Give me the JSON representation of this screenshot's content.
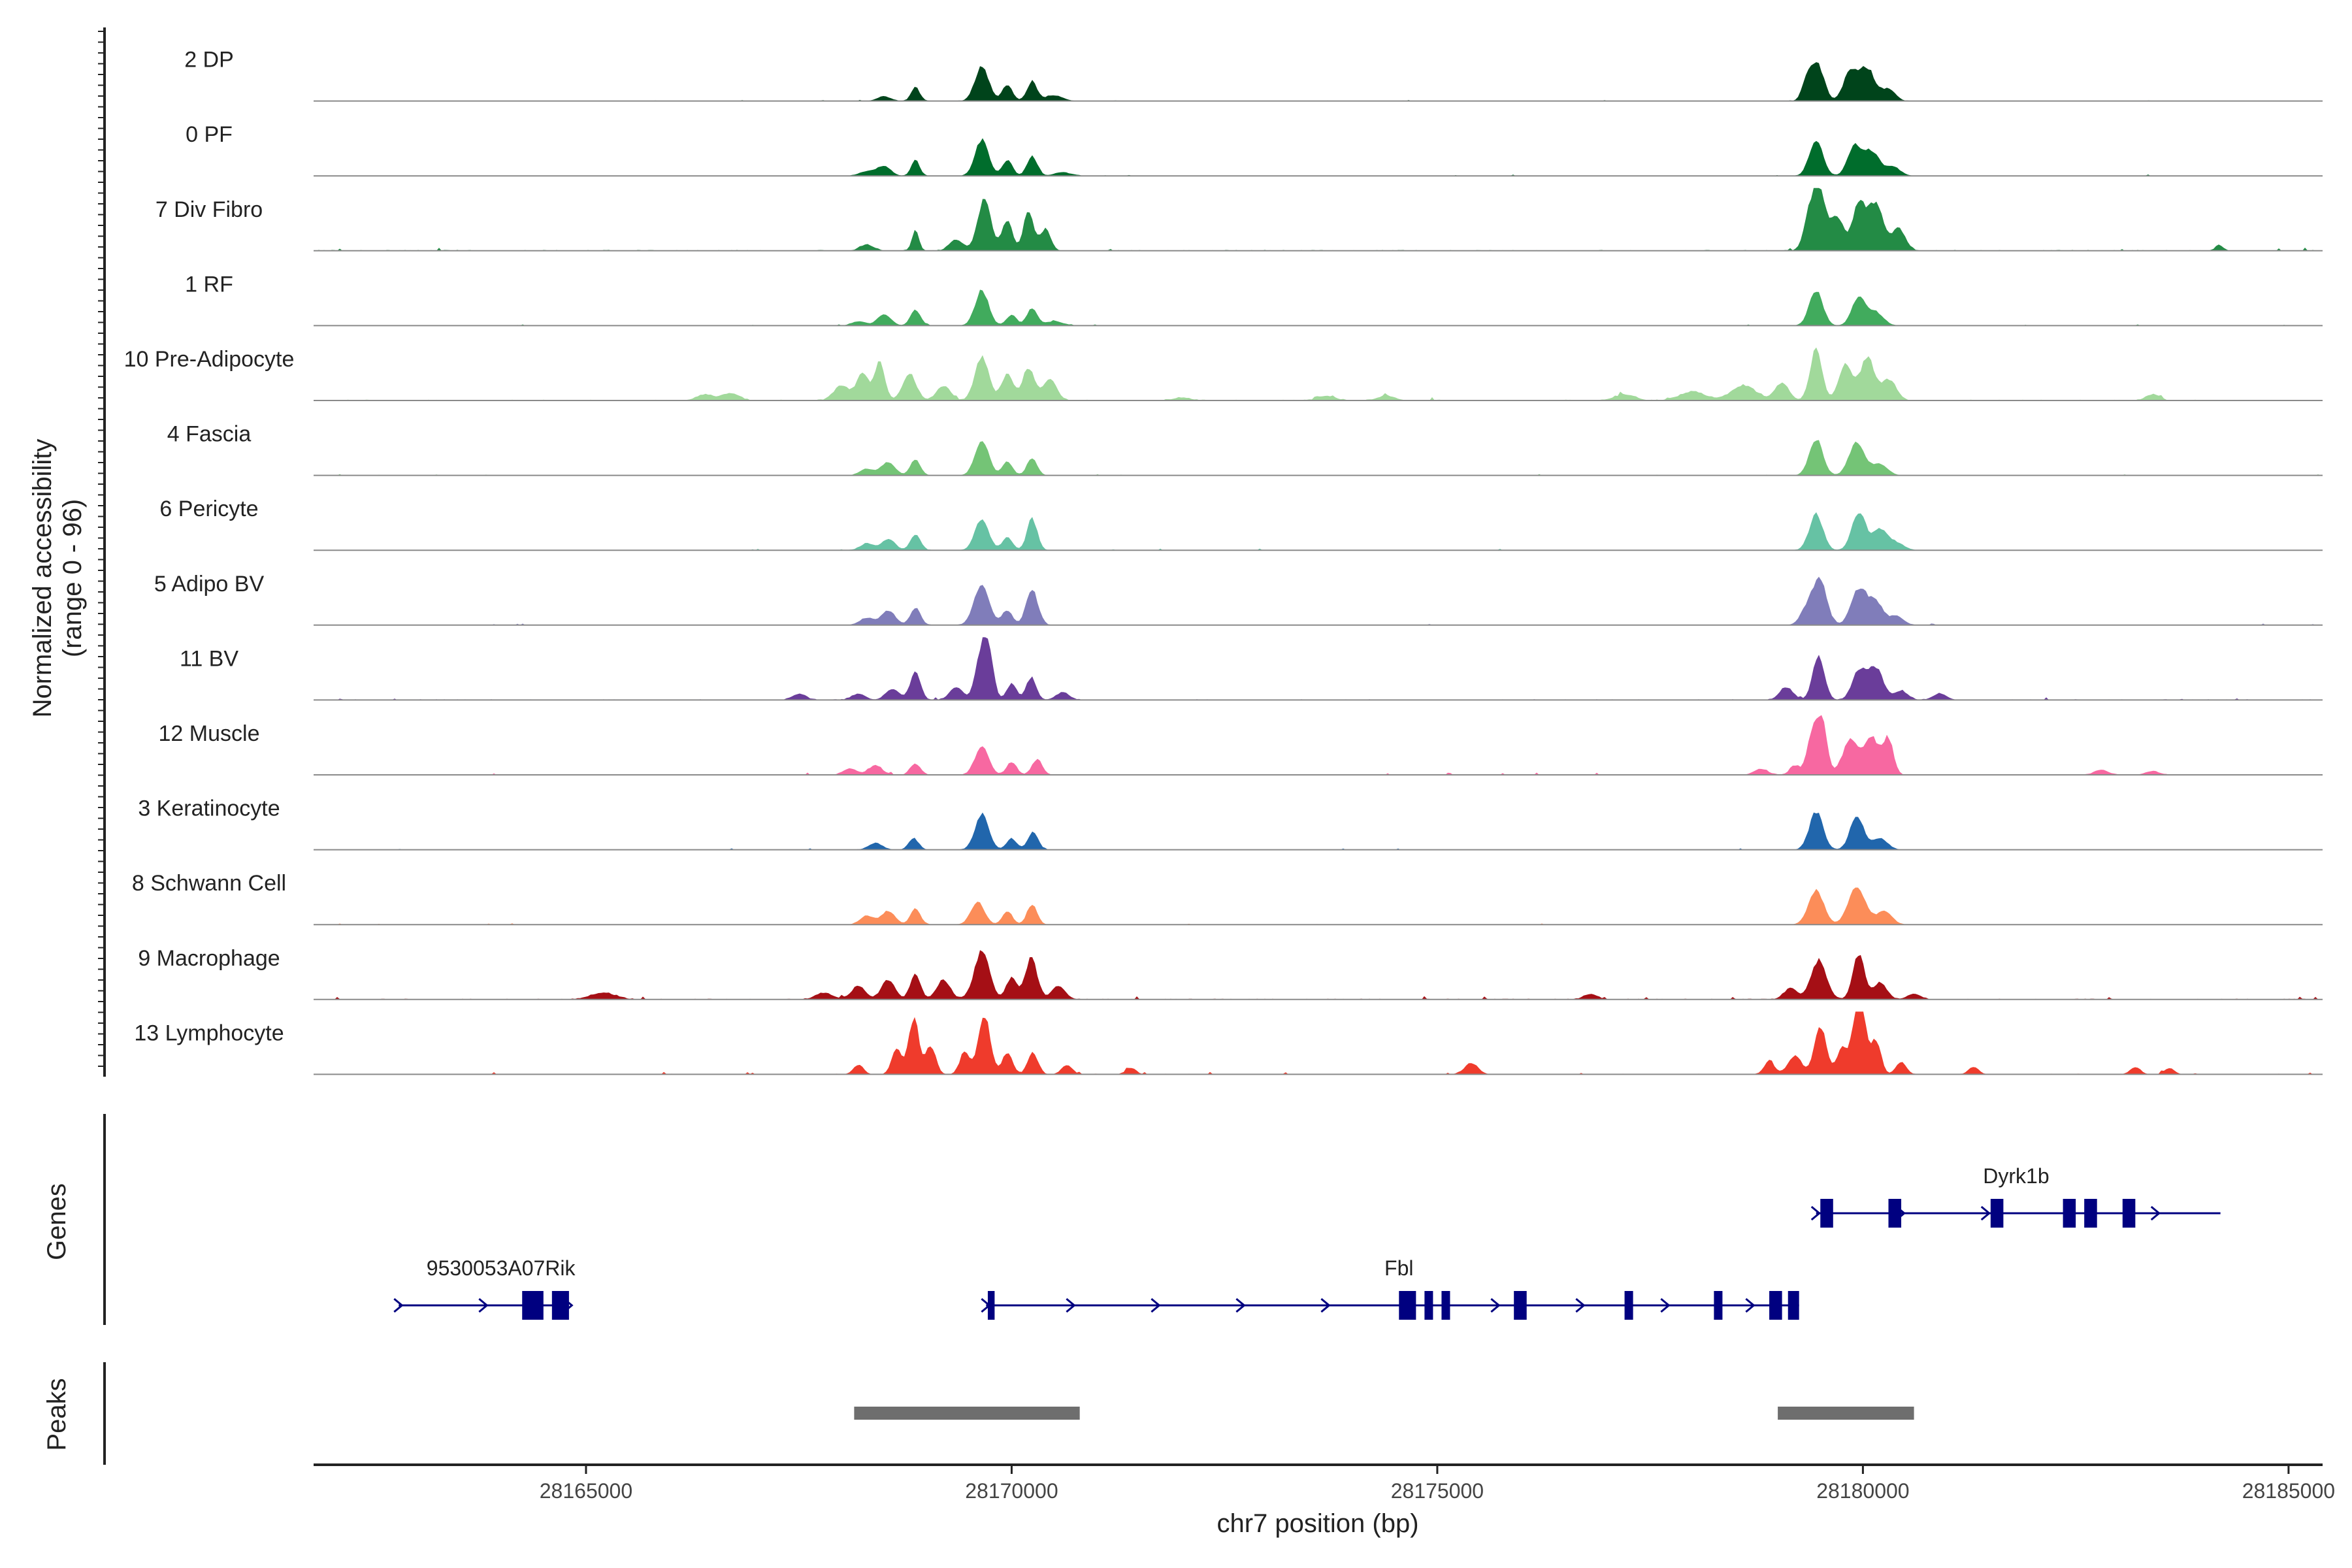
{
  "chart_data": {
    "type": "area",
    "title": "",
    "xlabel": "chr7 position (bp)",
    "ylabel": "Normalized accessibility",
    "ylabel_sub": "(range 0 - 96)",
    "xlim": [
      28161800,
      28185400
    ],
    "ylim": [
      0,
      96
    ],
    "x_ticks": [
      {
        "value": 28165000,
        "label": "28165000"
      },
      {
        "value": 28170000,
        "label": "28170000"
      },
      {
        "value": 28175000,
        "label": "28175000"
      },
      {
        "value": 28180000,
        "label": "28180000"
      },
      {
        "value": 28185000,
        "label": "28185000"
      }
    ],
    "tracks": [
      {
        "name": "2 DP",
        "color": "#00441b",
        "scale": 0.75,
        "noise": 0.35,
        "peaks": [
          [
            28168500,
            0.1,
            80
          ],
          [
            28168870,
            0.3,
            50
          ],
          [
            28169650,
            0.75,
            80
          ],
          [
            28169950,
            0.35,
            60
          ],
          [
            28170240,
            0.42,
            60
          ],
          [
            28170500,
            0.12,
            100
          ],
          [
            28179350,
            0.5,
            60
          ],
          [
            28179480,
            0.72,
            70
          ],
          [
            28179850,
            0.62,
            80
          ],
          [
            28180050,
            0.7,
            90
          ],
          [
            28180300,
            0.25,
            80
          ]
        ]
      },
      {
        "name": "0 PF",
        "color": "#006d2c",
        "scale": 0.72,
        "noise": 0.3,
        "peaks": [
          [
            28168300,
            0.1,
            90
          ],
          [
            28168500,
            0.22,
            80
          ],
          [
            28168870,
            0.35,
            50
          ],
          [
            28169650,
            0.8,
            80
          ],
          [
            28169950,
            0.35,
            60
          ],
          [
            28170240,
            0.45,
            60
          ],
          [
            28170600,
            0.08,
            100
          ],
          [
            28179450,
            0.8,
            80
          ],
          [
            28179900,
            0.65,
            80
          ],
          [
            28180100,
            0.55,
            90
          ],
          [
            28180350,
            0.2,
            90
          ]
        ]
      },
      {
        "name": "7 Div Fibro",
        "color": "#238b45",
        "scale": 1.0,
        "noise": 0.55,
        "peaks": [
          [
            28168300,
            0.1,
            80
          ],
          [
            28168870,
            0.35,
            40
          ],
          [
            28169350,
            0.18,
            80
          ],
          [
            28169680,
            0.82,
            80
          ],
          [
            28169950,
            0.48,
            60
          ],
          [
            28170200,
            0.65,
            60
          ],
          [
            28170400,
            0.35,
            60
          ],
          [
            28179380,
            0.6,
            70
          ],
          [
            28179500,
            0.9,
            70
          ],
          [
            28179700,
            0.55,
            70
          ],
          [
            28179950,
            0.7,
            80
          ],
          [
            28180150,
            0.75,
            90
          ],
          [
            28180420,
            0.35,
            80
          ],
          [
            28184180,
            0.1,
            40
          ]
        ]
      },
      {
        "name": "1 RF",
        "color": "#41ab5d",
        "scale": 0.7,
        "noise": 0.3,
        "peaks": [
          [
            28168200,
            0.1,
            80
          ],
          [
            28168500,
            0.25,
            80
          ],
          [
            28168870,
            0.35,
            60
          ],
          [
            28169650,
            0.8,
            80
          ],
          [
            28170000,
            0.25,
            60
          ],
          [
            28170240,
            0.4,
            60
          ],
          [
            28170500,
            0.1,
            100
          ],
          [
            28179450,
            0.8,
            80
          ],
          [
            28179950,
            0.65,
            80
          ],
          [
            28180150,
            0.3,
            90
          ]
        ]
      },
      {
        "name": "10 Pre-Adipocyte",
        "color": "#a1d99b",
        "scale": 0.95,
        "noise": 0.55,
        "peaks": [
          [
            28166400,
            0.1,
            100
          ],
          [
            28166700,
            0.12,
            100
          ],
          [
            28168000,
            0.25,
            90
          ],
          [
            28168250,
            0.45,
            70
          ],
          [
            28168450,
            0.65,
            60
          ],
          [
            28168800,
            0.45,
            80
          ],
          [
            28169200,
            0.25,
            80
          ],
          [
            28169650,
            0.75,
            80
          ],
          [
            28169950,
            0.45,
            70
          ],
          [
            28170200,
            0.55,
            70
          ],
          [
            28170450,
            0.35,
            80
          ],
          [
            28172000,
            0.05,
            100
          ],
          [
            28173700,
            0.08,
            100
          ],
          [
            28174400,
            0.08,
            100
          ],
          [
            28177200,
            0.1,
            120
          ],
          [
            28178000,
            0.15,
            150
          ],
          [
            28178600,
            0.25,
            150
          ],
          [
            28179050,
            0.3,
            80
          ],
          [
            28179450,
            0.85,
            70
          ],
          [
            28179800,
            0.6,
            80
          ],
          [
            28180050,
            0.72,
            80
          ],
          [
            28180300,
            0.35,
            90
          ],
          [
            28183400,
            0.1,
            80
          ]
        ]
      },
      {
        "name": "4 Fascia",
        "color": "#74c476",
        "scale": 0.72,
        "noise": 0.3,
        "peaks": [
          [
            28168300,
            0.15,
            80
          ],
          [
            28168550,
            0.3,
            80
          ],
          [
            28168870,
            0.35,
            60
          ],
          [
            28169650,
            0.8,
            80
          ],
          [
            28169950,
            0.3,
            60
          ],
          [
            28170240,
            0.38,
            60
          ],
          [
            28179450,
            0.8,
            80
          ],
          [
            28179930,
            0.75,
            90
          ],
          [
            28180200,
            0.25,
            90
          ]
        ]
      },
      {
        "name": "6 Pericyte",
        "color": "#66c2a4",
        "scale": 0.72,
        "noise": 0.35,
        "peaks": [
          [
            28168300,
            0.15,
            80
          ],
          [
            28168550,
            0.25,
            80
          ],
          [
            28168870,
            0.35,
            60
          ],
          [
            28169650,
            0.7,
            80
          ],
          [
            28169950,
            0.3,
            60
          ],
          [
            28170240,
            0.7,
            60
          ],
          [
            28179450,
            0.8,
            80
          ],
          [
            28179950,
            0.85,
            80
          ],
          [
            28180200,
            0.45,
            90
          ],
          [
            28180400,
            0.15,
            90
          ]
        ]
      },
      {
        "name": "5 Adipo BV",
        "color": "#807dba",
        "scale": 0.8,
        "noise": 0.35,
        "peaks": [
          [
            28168300,
            0.15,
            80
          ],
          [
            28168550,
            0.3,
            80
          ],
          [
            28168870,
            0.35,
            60
          ],
          [
            28169650,
            0.8,
            90
          ],
          [
            28169950,
            0.3,
            60
          ],
          [
            28170240,
            0.7,
            70
          ],
          [
            28179350,
            0.35,
            80
          ],
          [
            28179500,
            0.85,
            80
          ],
          [
            28179950,
            0.7,
            90
          ],
          [
            28180150,
            0.45,
            90
          ],
          [
            28180400,
            0.18,
            80
          ]
        ]
      },
      {
        "name": "11 BV",
        "color": "#6a3d9a",
        "scale": 1.0,
        "noise": 0.45,
        "peaks": [
          [
            28167500,
            0.1,
            80
          ],
          [
            28168200,
            0.1,
            80
          ],
          [
            28168600,
            0.18,
            80
          ],
          [
            28168870,
            0.45,
            60
          ],
          [
            28169350,
            0.2,
            80
          ],
          [
            28169620,
            0.55,
            60
          ],
          [
            28169720,
            0.9,
            60
          ],
          [
            28170000,
            0.25,
            60
          ],
          [
            28170230,
            0.35,
            60
          ],
          [
            28170600,
            0.12,
            80
          ],
          [
            28179100,
            0.2,
            80
          ],
          [
            28179480,
            0.7,
            70
          ],
          [
            28179950,
            0.45,
            80
          ],
          [
            28180150,
            0.5,
            90
          ],
          [
            28180450,
            0.15,
            80
          ],
          [
            28180900,
            0.1,
            80
          ]
        ]
      },
      {
        "name": "12 Muscle",
        "color": "#f768a1",
        "scale": 1.0,
        "noise": 0.35,
        "peaks": [
          [
            28168100,
            0.1,
            80
          ],
          [
            28168400,
            0.15,
            80
          ],
          [
            28168870,
            0.18,
            60
          ],
          [
            28169650,
            0.45,
            80
          ],
          [
            28170000,
            0.2,
            60
          ],
          [
            28170300,
            0.25,
            60
          ],
          [
            28178800,
            0.1,
            80
          ],
          [
            28179200,
            0.15,
            60
          ],
          [
            28179400,
            0.6,
            60
          ],
          [
            28179520,
            0.85,
            60
          ],
          [
            28179850,
            0.55,
            90
          ],
          [
            28180100,
            0.6,
            90
          ],
          [
            28180300,
            0.55,
            60
          ],
          [
            28182800,
            0.08,
            80
          ],
          [
            28183400,
            0.06,
            80
          ]
        ]
      },
      {
        "name": "3 Keratinocyte",
        "color": "#2166ac",
        "scale": 0.72,
        "noise": 0.3,
        "peaks": [
          [
            28168400,
            0.15,
            80
          ],
          [
            28168850,
            0.25,
            60
          ],
          [
            28169650,
            0.8,
            80
          ],
          [
            28170000,
            0.25,
            60
          ],
          [
            28170250,
            0.4,
            60
          ],
          [
            28179450,
            0.85,
            80
          ],
          [
            28179930,
            0.75,
            80
          ],
          [
            28180200,
            0.25,
            90
          ]
        ]
      },
      {
        "name": "8 Schwann Cell",
        "color": "#fc8d59",
        "scale": 0.72,
        "noise": 0.3,
        "peaks": [
          [
            28168300,
            0.2,
            80
          ],
          [
            28168550,
            0.3,
            80
          ],
          [
            28168870,
            0.35,
            60
          ],
          [
            28169600,
            0.5,
            80
          ],
          [
            28169950,
            0.3,
            60
          ],
          [
            28170240,
            0.45,
            60
          ],
          [
            28179450,
            0.75,
            90
          ],
          [
            28179930,
            0.85,
            100
          ],
          [
            28180250,
            0.3,
            90
          ]
        ]
      },
      {
        "name": "9 Macrophage",
        "color": "#a50f15",
        "scale": 0.9,
        "noise": 0.55,
        "peaks": [
          [
            28165200,
            0.12,
            150
          ],
          [
            28167800,
            0.12,
            100
          ],
          [
            28168200,
            0.25,
            80
          ],
          [
            28168550,
            0.35,
            80
          ],
          [
            28168870,
            0.45,
            60
          ],
          [
            28169200,
            0.35,
            80
          ],
          [
            28169650,
            0.85,
            90
          ],
          [
            28170000,
            0.4,
            60
          ],
          [
            28170230,
            0.75,
            70
          ],
          [
            28170550,
            0.25,
            80
          ],
          [
            28176800,
            0.1,
            80
          ],
          [
            28179150,
            0.2,
            80
          ],
          [
            28179480,
            0.7,
            90
          ],
          [
            28179950,
            0.8,
            70
          ],
          [
            28180200,
            0.3,
            80
          ],
          [
            28180600,
            0.1,
            80
          ]
        ]
      },
      {
        "name": "13 Lymphocyte",
        "color": "#ef3b2c",
        "scale": 1.0,
        "noise": 0.4,
        "peaks": [
          [
            28168200,
            0.15,
            60
          ],
          [
            28168650,
            0.4,
            60
          ],
          [
            28168850,
            0.9,
            60
          ],
          [
            28169050,
            0.45,
            60
          ],
          [
            28169450,
            0.35,
            60
          ],
          [
            28169680,
            0.95,
            70
          ],
          [
            28169950,
            0.35,
            60
          ],
          [
            28170250,
            0.35,
            60
          ],
          [
            28170650,
            0.15,
            60
          ],
          [
            28171400,
            0.1,
            60
          ],
          [
            28175400,
            0.18,
            80
          ],
          [
            28178900,
            0.22,
            60
          ],
          [
            28179200,
            0.3,
            80
          ],
          [
            28179500,
            0.75,
            70
          ],
          [
            28179750,
            0.4,
            60
          ],
          [
            28179900,
            0.5,
            60
          ],
          [
            28179980,
            0.95,
            60
          ],
          [
            28180150,
            0.55,
            60
          ],
          [
            28180450,
            0.2,
            60
          ],
          [
            28181300,
            0.12,
            60
          ],
          [
            28183200,
            0.12,
            60
          ],
          [
            28183600,
            0.1,
            60
          ]
        ]
      }
    ],
    "genes_label": "Genes",
    "genes": [
      {
        "name": "9530053A07Rik",
        "start": 28162800,
        "end": 28164800,
        "row": 1,
        "exons": [
          [
            28164250,
            28164500
          ],
          [
            28164600,
            28164800
          ]
        ]
      },
      {
        "name": "Fbl",
        "start": 28169700,
        "end": 28179250,
        "row": 1,
        "exons": [
          [
            28169720,
            28169800
          ],
          [
            28174550,
            28174750
          ],
          [
            28174850,
            28174950
          ],
          [
            28175050,
            28175150
          ],
          [
            28175900,
            28176050
          ],
          [
            28177200,
            28177300
          ],
          [
            28178250,
            28178350
          ],
          [
            28178900,
            28179050
          ],
          [
            28179120,
            28179250
          ]
        ]
      },
      {
        "name": "Dyrk1b",
        "start": 28179450,
        "end": 28184200,
        "row": 0,
        "exons": [
          [
            28179500,
            28179650
          ],
          [
            28180300,
            28180450
          ],
          [
            28181500,
            28181650
          ],
          [
            28182350,
            28182500
          ],
          [
            28182600,
            28182750
          ],
          [
            28183050,
            28183200
          ]
        ]
      }
    ],
    "peaks_label": "Peaks",
    "peak_regions": [
      {
        "start": 28168150,
        "end": 28170800
      },
      {
        "start": 28179000,
        "end": 28180600
      }
    ]
  }
}
